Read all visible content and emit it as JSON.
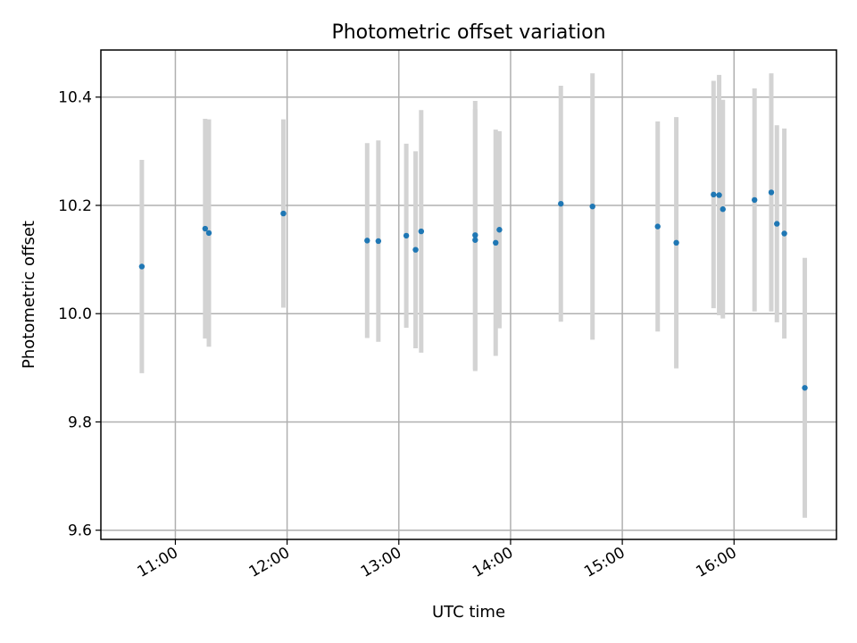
{
  "chart_data": {
    "type": "scatter",
    "title": "Photometric offset variation",
    "xlabel": "UTC time",
    "ylabel": "Photometric offset",
    "x_tick_labels": [
      "11:00",
      "12:00",
      "13:00",
      "14:00",
      "15:00",
      "16:00"
    ],
    "y_tick_labels": [
      "9.6",
      "9.8",
      "10.0",
      "10.2",
      "10.4"
    ],
    "xlim": [
      "10:20",
      "16:55"
    ],
    "ylim": [
      9.583,
      10.487
    ],
    "grid": true,
    "errorbar_color": "#d3d3d3",
    "marker_color": "#1f77b4",
    "points": [
      {
        "x": "10:42",
        "y": 10.087,
        "err": 0.197
      },
      {
        "x": "11:16",
        "y": 10.157,
        "err": 0.203
      },
      {
        "x": "11:18",
        "y": 10.149,
        "err": 0.21
      },
      {
        "x": "11:58",
        "y": 10.185,
        "err": 0.174
      },
      {
        "x": "12:43",
        "y": 10.135,
        "err": 0.18
      },
      {
        "x": "12:49",
        "y": 10.134,
        "err": 0.186
      },
      {
        "x": "13:04",
        "y": 10.144,
        "err": 0.17
      },
      {
        "x": "13:09",
        "y": 10.118,
        "err": 0.182
      },
      {
        "x": "13:12",
        "y": 10.152,
        "err": 0.224
      },
      {
        "x": "13:41",
        "y": 10.136,
        "err": 0.242
      },
      {
        "x": "13:41",
        "y": 10.145,
        "err": 0.248
      },
      {
        "x": "13:52",
        "y": 10.131,
        "err": 0.209
      },
      {
        "x": "13:54",
        "y": 10.155,
        "err": 0.182
      },
      {
        "x": "14:27",
        "y": 10.203,
        "err": 0.218
      },
      {
        "x": "14:44",
        "y": 10.198,
        "err": 0.246
      },
      {
        "x": "15:19",
        "y": 10.161,
        "err": 0.194
      },
      {
        "x": "15:29",
        "y": 10.131,
        "err": 0.232
      },
      {
        "x": "15:49",
        "y": 10.22,
        "err": 0.21
      },
      {
        "x": "15:52",
        "y": 10.219,
        "err": 0.222
      },
      {
        "x": "15:54",
        "y": 10.193,
        "err": 0.202
      },
      {
        "x": "16:11",
        "y": 10.21,
        "err": 0.206
      },
      {
        "x": "16:20",
        "y": 10.224,
        "err": 0.22
      },
      {
        "x": "16:23",
        "y": 10.166,
        "err": 0.182
      },
      {
        "x": "16:27",
        "y": 10.148,
        "err": 0.194
      },
      {
        "x": "16:38",
        "y": 9.863,
        "err": 0.24
      }
    ]
  }
}
